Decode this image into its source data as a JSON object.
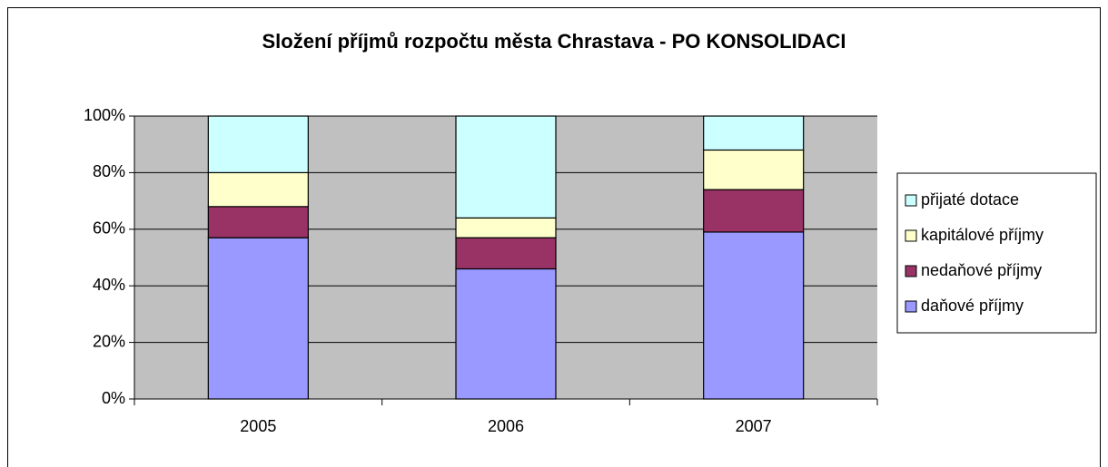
{
  "chart_data": {
    "type": "stacked_bar_100",
    "title": "Složení příjmů rozpočtu města Chrastava - PO KONSOLIDACI",
    "categories": [
      "2005",
      "2006",
      "2007"
    ],
    "series": [
      {
        "name": "daňové příjmy",
        "color": "#9999ff",
        "values": [
          57,
          46,
          59
        ]
      },
      {
        "name": "nedaňové příjmy",
        "color": "#993366",
        "values": [
          11,
          11,
          15
        ]
      },
      {
        "name": "kapitálové příjmy",
        "color": "#ffffcc",
        "values": [
          12,
          7,
          14
        ]
      },
      {
        "name": "přijaté dotace",
        "color": "#ccffff",
        "values": [
          20,
          36,
          12
        ]
      }
    ],
    "ylim": [
      0,
      100
    ],
    "yticks": [
      {
        "value": 0,
        "label": "0%"
      },
      {
        "value": 20,
        "label": "20%"
      },
      {
        "value": 40,
        "label": "40%"
      },
      {
        "value": 60,
        "label": "60%"
      },
      {
        "value": 80,
        "label": "80%"
      },
      {
        "value": 100,
        "label": "100%"
      }
    ],
    "grid": true,
    "plot_background": "#c0c0c0",
    "legend": "right"
  }
}
